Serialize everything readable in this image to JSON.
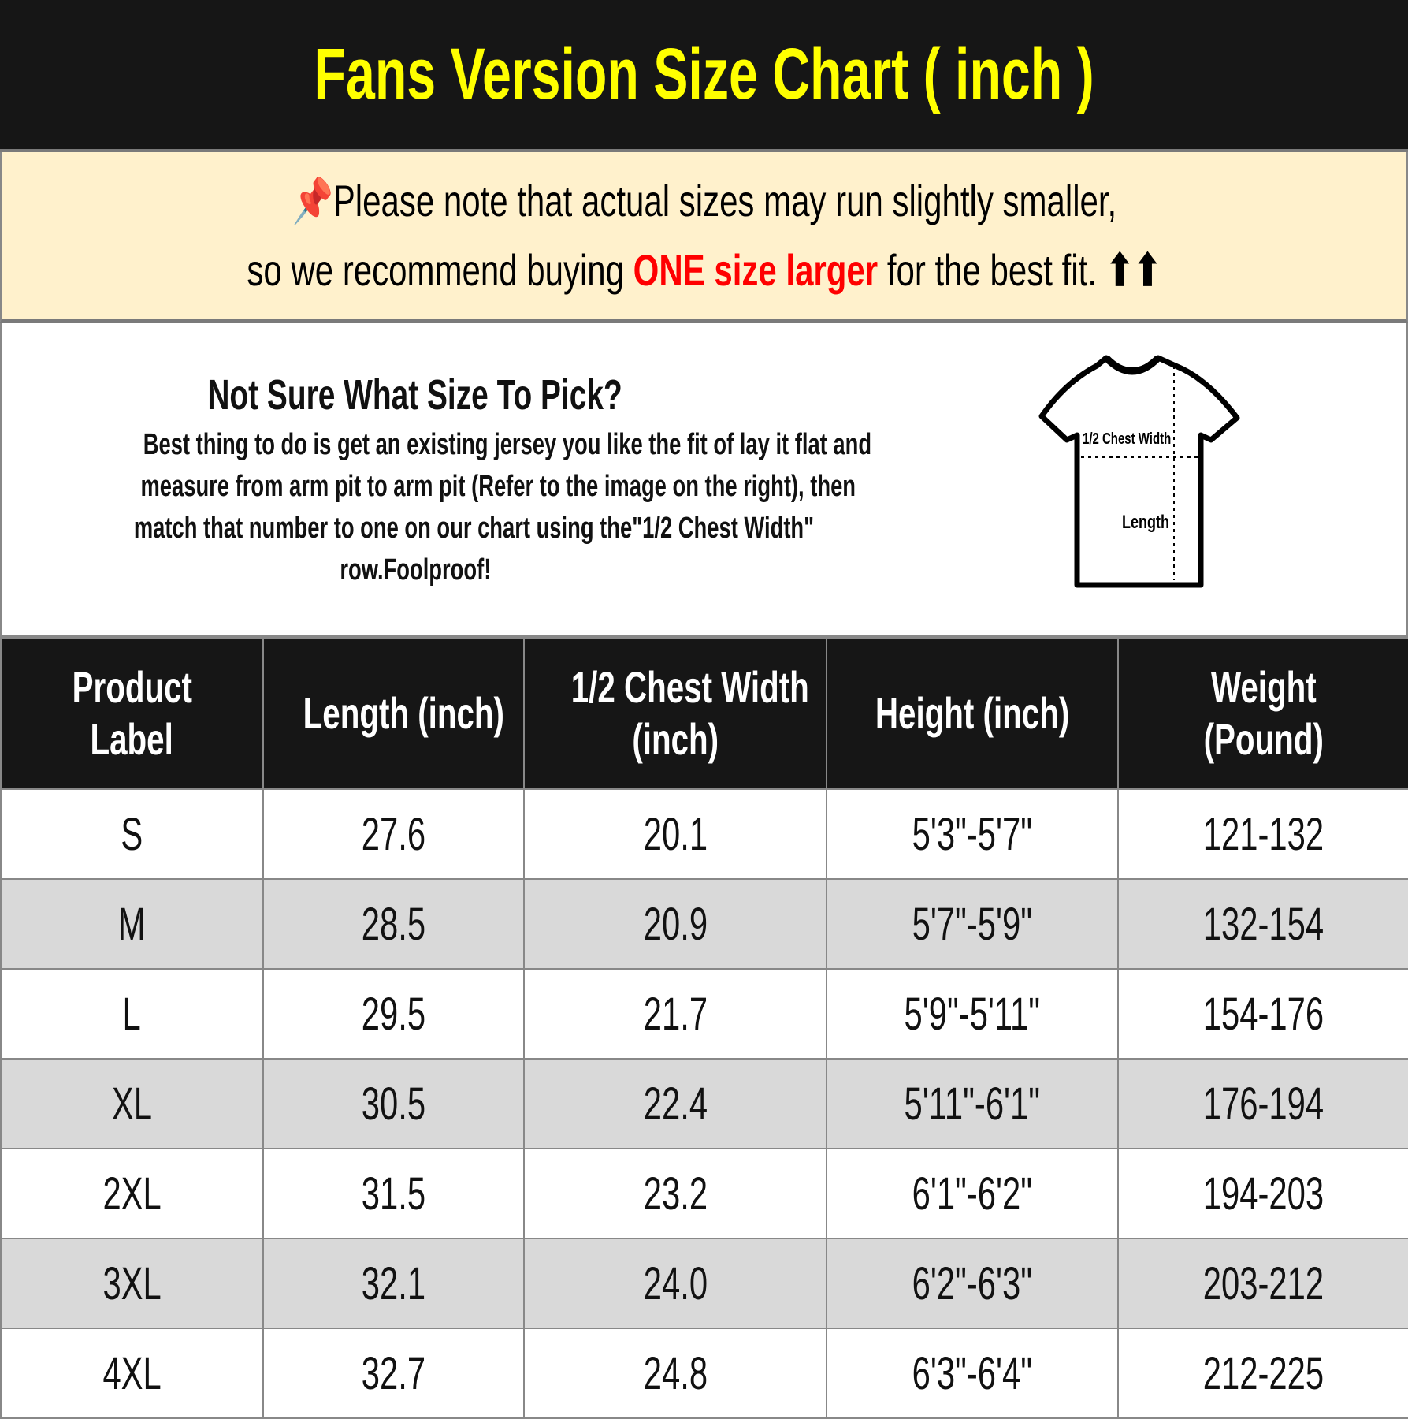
{
  "title": "Fans Version Size Chart ( inch )",
  "notice": {
    "icon": "pushpin-icon",
    "line1": "Please note that actual sizes may run slightly smaller,",
    "line2_prefix": "so we recommend buying ",
    "line2_highlight": "ONE size larger",
    "line2_suffix": " for the best fit. ",
    "arrows": "⬆⬆",
    "highlight_color": "#ff0000"
  },
  "info": {
    "title": "Not Sure What Size To Pick?",
    "lines": [
      "Best thing to do is get an existing jersey you like the fit of lay it flat and",
      "measure from arm pit to arm pit (Refer to the image on the right), then",
      "match that number to one on our chart using the\"1/2 Chest Width\"",
      "row.Foolproof!"
    ],
    "diagram": {
      "chest_label": "1/2 Chest Width",
      "length_label": "Length"
    }
  },
  "table": {
    "headers": [
      [
        "Product",
        "Label"
      ],
      [
        "Length (inch)"
      ],
      [
        "1/2 Chest Width",
        "(inch)"
      ],
      [
        "Height (inch)"
      ],
      [
        "Weight",
        "(Pound)"
      ]
    ],
    "rows": [
      [
        "S",
        "27.6",
        "20.1",
        "5'3\"-5'7\"",
        "121-132"
      ],
      [
        "M",
        "28.5",
        "20.9",
        "5'7\"-5'9\"",
        "132-154"
      ],
      [
        "L",
        "29.5",
        "21.7",
        "5'9\"-5'11\"",
        "154-176"
      ],
      [
        "XL",
        "30.5",
        "22.4",
        "5'11\"-6'1\"",
        "176-194"
      ],
      [
        "2XL",
        "31.5",
        "23.2",
        "6'1\"-6'2\"",
        "194-203"
      ],
      [
        "3XL",
        "32.1",
        "24.0",
        "6'2\"-6'3\"",
        "203-212"
      ],
      [
        "4XL",
        "32.7",
        "24.8",
        "6'3\"-6'4\"",
        "212-225"
      ]
    ]
  },
  "colors": {
    "title": "#ffff00",
    "header_bg": "#161616",
    "notice_bg": "#fff1cc",
    "alt_row": "#d9d9d9"
  }
}
